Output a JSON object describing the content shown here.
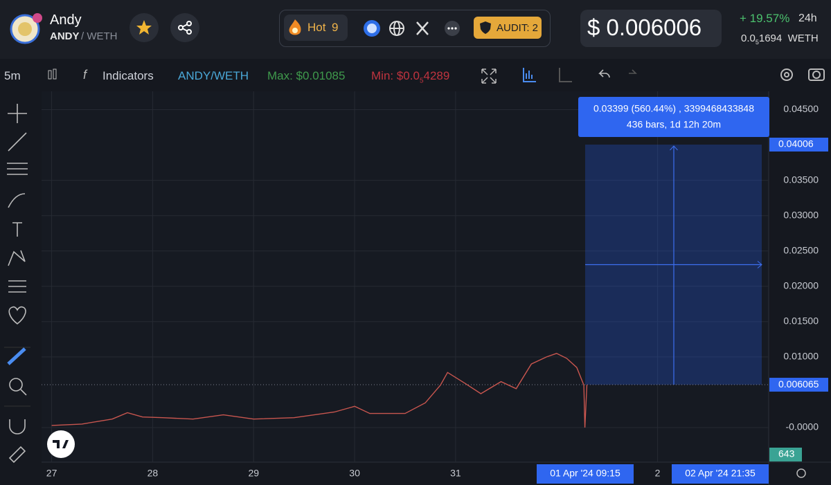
{
  "header": {
    "name": "Andy",
    "base": "ANDY",
    "quote": "/ WETH",
    "hot": "Hot",
    "hot_rank": "9",
    "audit": "AUDIT: 2",
    "price": "$ 0.006006",
    "change": "+ 19.57%",
    "period": "24h",
    "weth_price_lead": "0.0",
    "weth_price_zeros": "5",
    "weth_price_tail": "1694",
    "weth_unit": "WETH"
  },
  "toolbar": {
    "interval": "5m",
    "indicators": "Indicators",
    "pair": "ANDY/WETH",
    "max": "Max: $0.01085",
    "min_lead": "Min: $0.0",
    "min_zeros": "5",
    "min_tail": "4289"
  },
  "chart_data": {
    "type": "line",
    "color": "#c9564f",
    "x": [
      27.0,
      27.3,
      27.6,
      27.75,
      27.9,
      28.1,
      28.4,
      28.7,
      29.0,
      29.4,
      29.8,
      30.0,
      30.15,
      30.5,
      30.7,
      30.85,
      30.92,
      31.1,
      31.25,
      31.45,
      31.6,
      31.75,
      31.9,
      32.0,
      32.1,
      32.2,
      32.27,
      32.28,
      32.3
    ],
    "values": [
      0.0003,
      0.0005,
      0.0012,
      0.0021,
      0.0015,
      0.0014,
      0.0012,
      0.0018,
      0.0012,
      0.0014,
      0.0022,
      0.003,
      0.002,
      0.002,
      0.0035,
      0.006,
      0.0078,
      0.0062,
      0.0048,
      0.0065,
      0.0055,
      0.009,
      0.01,
      0.0105,
      0.0098,
      0.0085,
      0.006,
      0.0,
      0.006065
    ],
    "xlim": [
      26.9,
      34.1
    ],
    "ylim": [
      -0.0049,
      0.0476
    ],
    "xticks": [
      27,
      28,
      29,
      30,
      31,
      {
        "value": 33,
        "label": "2"
      }
    ],
    "yticks": [
      {
        "value": 0.045,
        "label": "0.04500"
      },
      {
        "value": 0.035,
        "label": "0.03500"
      },
      {
        "value": 0.03,
        "label": "0.03000"
      },
      {
        "value": 0.025,
        "label": "0.02500"
      },
      {
        "value": 0.02,
        "label": "0.02000"
      },
      {
        "value": 0.015,
        "label": "0.01500"
      },
      {
        "value": 0.01,
        "label": "0.01000"
      },
      {
        "value": 0,
        "label": "-0.0000"
      }
    ],
    "grid": true,
    "measure": {
      "from": 0.006065,
      "to": 0.04006,
      "summary": "0.03399 (560.44%) , 3399468433848",
      "bars": "436 bars, 1d 12h 20m",
      "start": "01 Apr '24   09:15",
      "end": "02 Apr '24   21:35"
    },
    "volume_label": 643
  }
}
